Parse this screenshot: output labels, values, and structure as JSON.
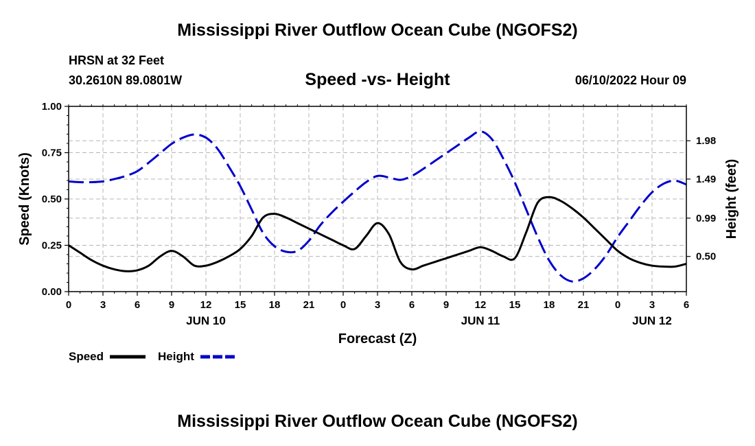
{
  "header": {
    "title": "Mississippi River Outflow Ocean Cube (NGOFS2)",
    "station": "HRSN at 32 Feet",
    "coords": "30.2610N  89.0801W",
    "subtitle": "Speed -vs- Height",
    "timestamp": "06/10/2022 Hour 09"
  },
  "footer": {
    "title": "Mississippi River Outflow Ocean Cube (NGOFS2)"
  },
  "colors": {
    "speed": "#000000",
    "height": "#0000cc",
    "grid": "#b4b4b4"
  },
  "chart_data": {
    "type": "line",
    "title": "Speed -vs- Height",
    "xlabel": "Forecast (Z)",
    "ylabel": "Speed (Knots)",
    "y2label": "Height (feet)",
    "xlim": [
      0,
      54
    ],
    "ylim": [
      0,
      1.0
    ],
    "y2lim": [
      0.05,
      2.42
    ],
    "grid": true,
    "legend_position": "bottom-left",
    "xticks": [
      {
        "x": 0,
        "label": "0"
      },
      {
        "x": 3,
        "label": "3"
      },
      {
        "x": 6,
        "label": "6"
      },
      {
        "x": 9,
        "label": "9"
      },
      {
        "x": 12,
        "label": "12"
      },
      {
        "x": 15,
        "label": "15"
      },
      {
        "x": 18,
        "label": "18"
      },
      {
        "x": 21,
        "label": "21"
      },
      {
        "x": 24,
        "label": "0"
      },
      {
        "x": 27,
        "label": "3"
      },
      {
        "x": 30,
        "label": "6"
      },
      {
        "x": 33,
        "label": "9"
      },
      {
        "x": 36,
        "label": "12"
      },
      {
        "x": 39,
        "label": "15"
      },
      {
        "x": 42,
        "label": "18"
      },
      {
        "x": 45,
        "label": "21"
      },
      {
        "x": 48,
        "label": "0"
      },
      {
        "x": 51,
        "label": "3"
      },
      {
        "x": 54,
        "label": "6"
      }
    ],
    "day_labels": [
      {
        "x": 12,
        "label": "JUN 10"
      },
      {
        "x": 36,
        "label": "JUN 11"
      },
      {
        "x": 51,
        "label": "JUN 12"
      }
    ],
    "yticks": [
      {
        "v": 0.0,
        "label": "0.00"
      },
      {
        "v": 0.25,
        "label": "0.25"
      },
      {
        "v": 0.5,
        "label": "0.50"
      },
      {
        "v": 0.75,
        "label": "0.75"
      },
      {
        "v": 1.0,
        "label": "1.00"
      }
    ],
    "y2ticks": [
      {
        "v": 0.5,
        "label": "0.50"
      },
      {
        "v": 0.99,
        "label": "0.99"
      },
      {
        "v": 1.49,
        "label": "1.49"
      },
      {
        "v": 1.98,
        "label": "1.98"
      }
    ],
    "series": [
      {
        "name": "Speed",
        "axis": "left",
        "style": "solid",
        "x": [
          0,
          1,
          2,
          3,
          4,
          5,
          6,
          7,
          8,
          9,
          10,
          11,
          12,
          13,
          14,
          15,
          16,
          17,
          18,
          19,
          20,
          21,
          22,
          23,
          24,
          25,
          26,
          27,
          28,
          29,
          30,
          31,
          32,
          33,
          34,
          35,
          36,
          37,
          38,
          39,
          40,
          41,
          42,
          43,
          44,
          45,
          46,
          47,
          48,
          49,
          50,
          51,
          52,
          53,
          54
        ],
        "values": [
          0.25,
          0.21,
          0.17,
          0.14,
          0.12,
          0.11,
          0.115,
          0.14,
          0.19,
          0.22,
          0.19,
          0.14,
          0.14,
          0.16,
          0.19,
          0.23,
          0.3,
          0.4,
          0.42,
          0.4,
          0.37,
          0.34,
          0.31,
          0.28,
          0.25,
          0.23,
          0.3,
          0.37,
          0.31,
          0.16,
          0.12,
          0.14,
          0.16,
          0.18,
          0.2,
          0.22,
          0.24,
          0.22,
          0.19,
          0.18,
          0.32,
          0.48,
          0.51,
          0.49,
          0.45,
          0.4,
          0.34,
          0.28,
          0.22,
          0.18,
          0.155,
          0.14,
          0.135,
          0.135,
          0.15
        ]
      },
      {
        "name": "Height",
        "axis": "right",
        "style": "dashed",
        "x": [
          0,
          1,
          2,
          3,
          4,
          5,
          6,
          7,
          8,
          9,
          10,
          11,
          12,
          13,
          14,
          15,
          16,
          17,
          18,
          19,
          20,
          21,
          22,
          23,
          24,
          25,
          26,
          27,
          28,
          29,
          30,
          31,
          32,
          33,
          34,
          35,
          36,
          37,
          38,
          39,
          40,
          41,
          42,
          43,
          44,
          45,
          46,
          47,
          48,
          49,
          50,
          51,
          52,
          53,
          54
        ],
        "values": [
          1.46,
          1.45,
          1.45,
          1.46,
          1.49,
          1.53,
          1.59,
          1.7,
          1.82,
          1.94,
          2.02,
          2.06,
          2.02,
          1.88,
          1.65,
          1.4,
          1.1,
          0.8,
          0.63,
          0.56,
          0.57,
          0.7,
          0.9,
          1.06,
          1.2,
          1.33,
          1.45,
          1.53,
          1.51,
          1.48,
          1.53,
          1.62,
          1.72,
          1.82,
          1.92,
          2.02,
          2.1,
          2.0,
          1.75,
          1.45,
          1.1,
          0.75,
          0.45,
          0.26,
          0.18,
          0.22,
          0.34,
          0.52,
          0.75,
          0.95,
          1.15,
          1.32,
          1.43,
          1.47,
          1.42
        ]
      }
    ]
  }
}
